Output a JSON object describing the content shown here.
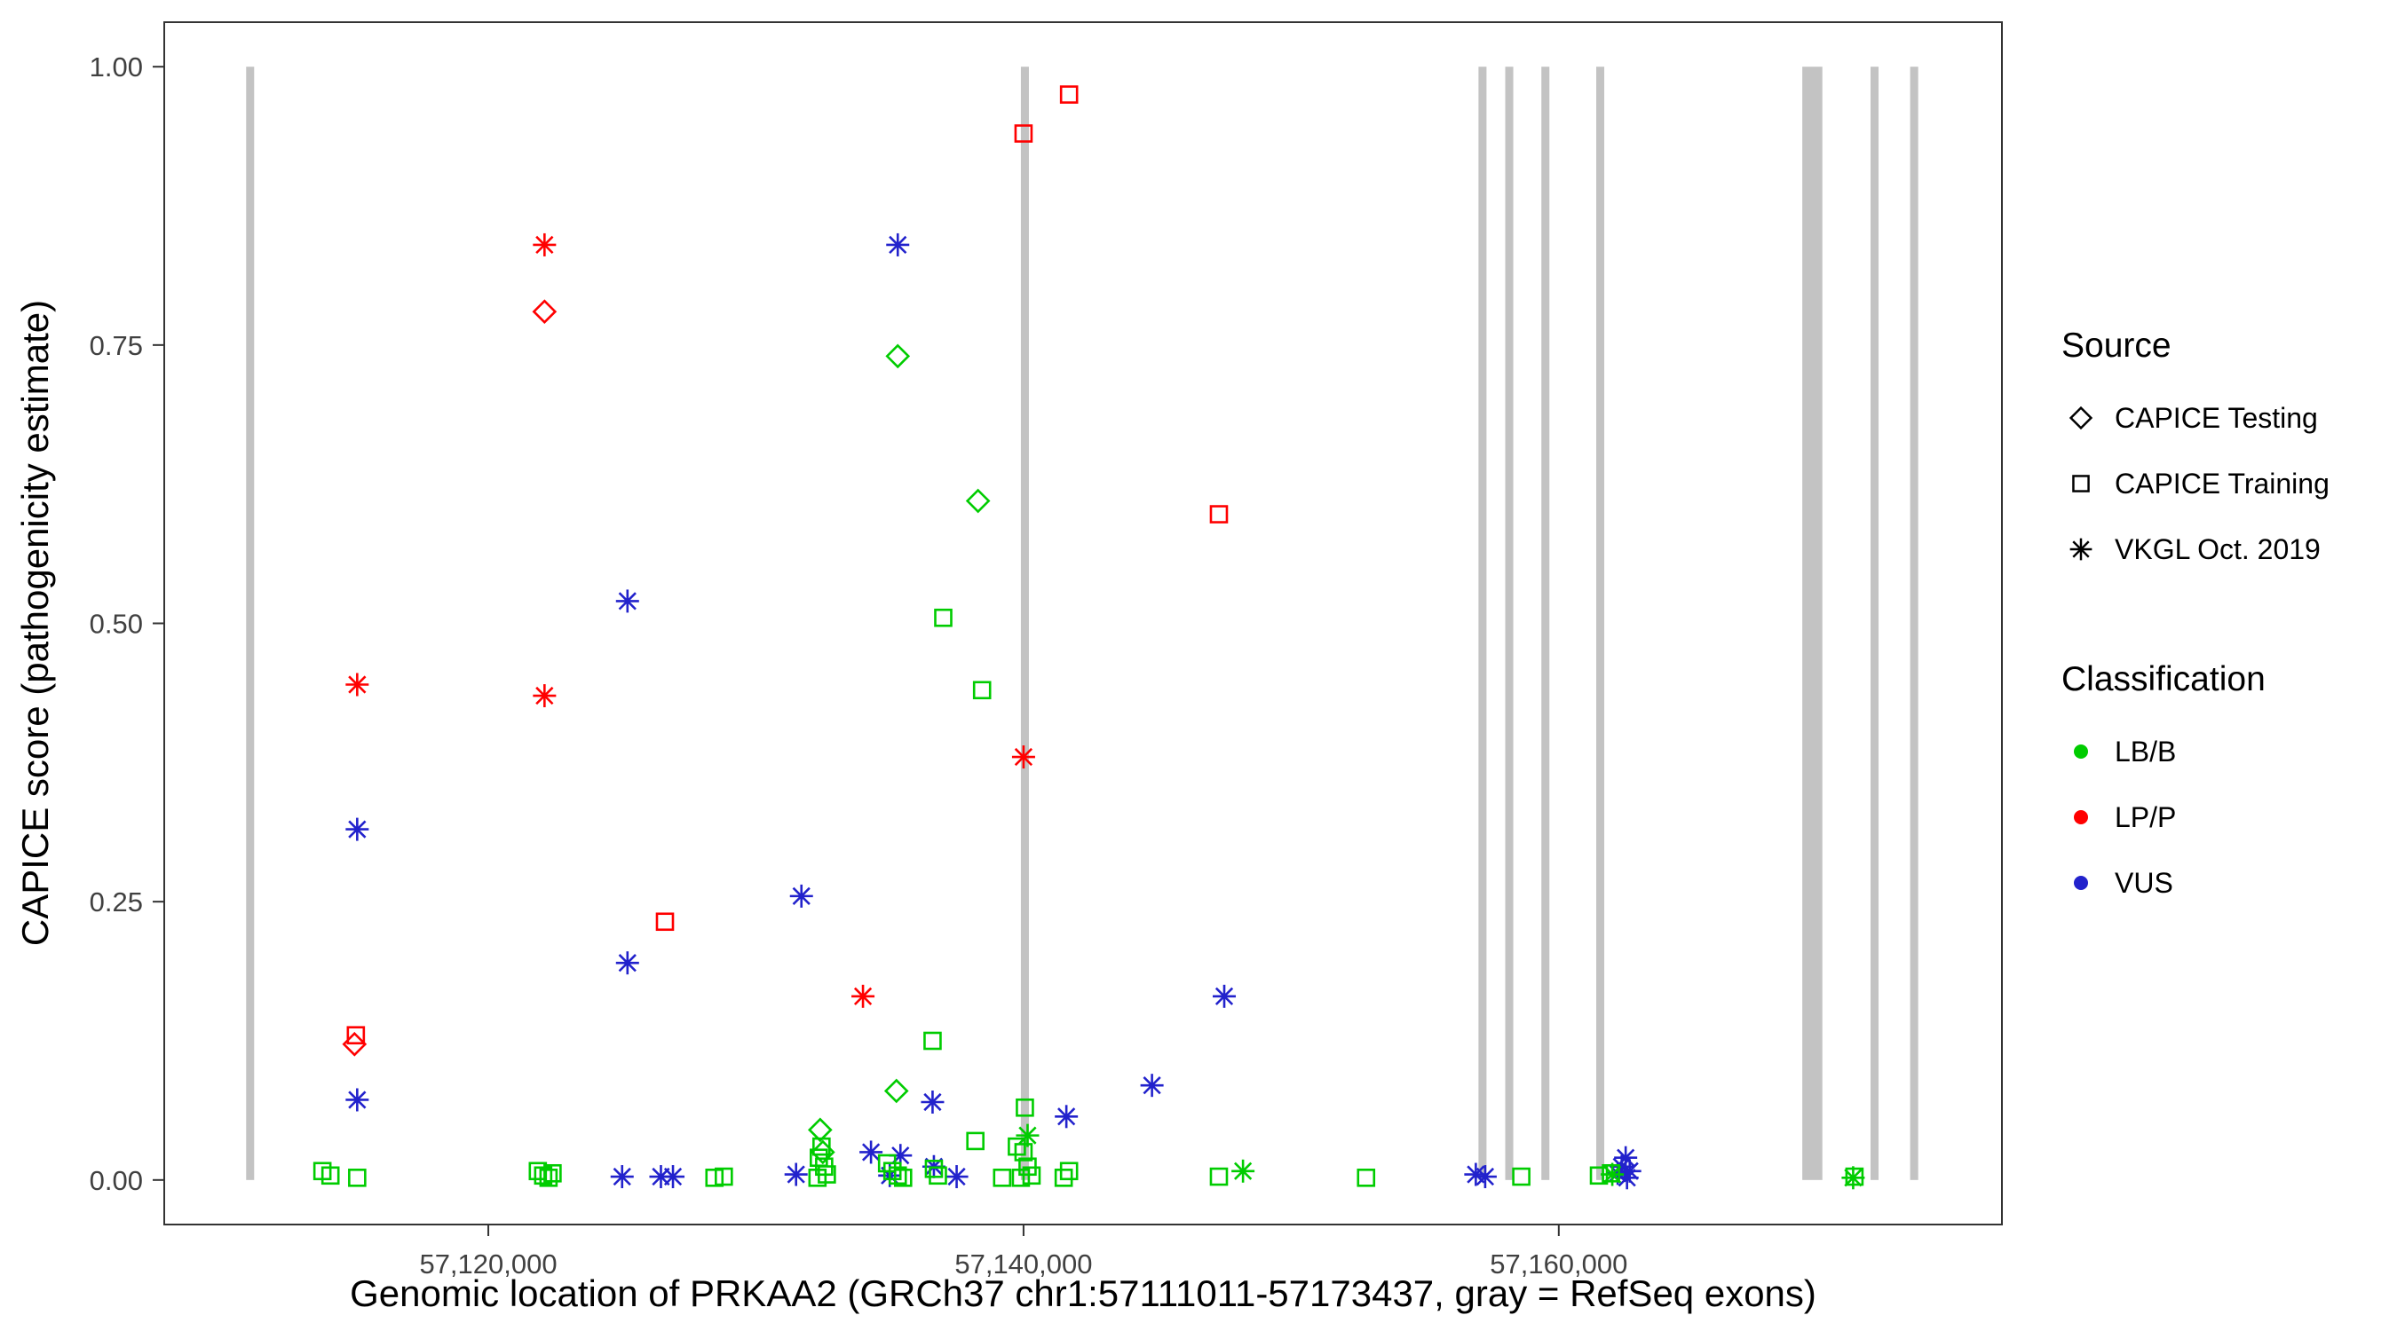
{
  "chart_data": {
    "type": "scatter",
    "title": "",
    "xlabel": "Genomic location of PRKAA2 (GRCh37 chr1:57111011-57173437, gray = RefSeq exons)",
    "ylabel": "CAPICE score (pathogenicity estimate)",
    "x_domain": [
      57107890,
      57176560
    ],
    "y_domain": [
      -0.04,
      1.04
    ],
    "x_ticks": [
      {
        "value": 57120000,
        "label": "57,120,000"
      },
      {
        "value": 57140000,
        "label": "57,140,000"
      },
      {
        "value": 57160000,
        "label": "57,160,000"
      }
    ],
    "y_ticks": [
      {
        "value": 0.0,
        "label": "0.00"
      },
      {
        "value": 0.25,
        "label": "0.25"
      },
      {
        "value": 0.5,
        "label": "0.50"
      },
      {
        "value": 0.75,
        "label": "0.75"
      },
      {
        "value": 1.0,
        "label": "1.00"
      }
    ],
    "grid": false,
    "legend_position": "right",
    "exon_color": "#C3C3C3",
    "exons": [
      [
        57110950,
        57111250
      ],
      [
        57139900,
        57140200
      ],
      [
        57157000,
        57157300
      ],
      [
        57158000,
        57158300
      ],
      [
        57159350,
        57159650
      ],
      [
        57161400,
        57161700
      ],
      [
        57169100,
        57169850
      ],
      [
        57171650,
        57171950
      ],
      [
        57173130,
        57173430
      ]
    ],
    "color_by_class": {
      "LB/B": "#00CC00",
      "LP/P": "#FF0000",
      "VUS": "#2222CC"
    },
    "shape_by_source": {
      "CAPICE Testing": "diamond",
      "CAPICE Training": "square",
      "VKGL Oct. 2019": "asterisk"
    },
    "point_fields": [
      "genomic_position",
      "capice_score",
      "classification",
      "source"
    ],
    "points": [
      [
        57115100,
        0.445,
        "LP/P",
        "VKGL Oct. 2019"
      ],
      [
        57115050,
        0.13,
        "LP/P",
        "CAPICE Training"
      ],
      [
        57115000,
        0.122,
        "LP/P",
        "CAPICE Testing"
      ],
      [
        57122100,
        0.84,
        "LP/P",
        "VKGL Oct. 2019"
      ],
      [
        57122100,
        0.78,
        "LP/P",
        "CAPICE Testing"
      ],
      [
        57122100,
        0.435,
        "LP/P",
        "VKGL Oct. 2019"
      ],
      [
        57126600,
        0.232,
        "LP/P",
        "CAPICE Training"
      ],
      [
        57134000,
        0.165,
        "LP/P",
        "VKGL Oct. 2019"
      ],
      [
        57140000,
        0.94,
        "LP/P",
        "CAPICE Training"
      ],
      [
        57141700,
        0.975,
        "LP/P",
        "CAPICE Training"
      ],
      [
        57140000,
        0.38,
        "LP/P",
        "VKGL Oct. 2019"
      ],
      [
        57147300,
        0.598,
        "LP/P",
        "CAPICE Training"
      ],
      [
        57135300,
        0.84,
        "VUS",
        "VKGL Oct. 2019"
      ],
      [
        57125200,
        0.52,
        "VUS",
        "VKGL Oct. 2019"
      ],
      [
        57115100,
        0.315,
        "VUS",
        "VKGL Oct. 2019"
      ],
      [
        57131700,
        0.255,
        "VUS",
        "VKGL Oct. 2019"
      ],
      [
        57125200,
        0.195,
        "VUS",
        "VKGL Oct. 2019"
      ],
      [
        57147500,
        0.165,
        "VUS",
        "VKGL Oct. 2019"
      ],
      [
        57144800,
        0.085,
        "VUS",
        "VKGL Oct. 2019"
      ],
      [
        57115100,
        0.072,
        "VUS",
        "VKGL Oct. 2019"
      ],
      [
        57136600,
        0.07,
        "VUS",
        "VKGL Oct. 2019"
      ],
      [
        57141600,
        0.057,
        "VUS",
        "VKGL Oct. 2019"
      ],
      [
        57125000,
        0.003,
        "VUS",
        "VKGL Oct. 2019"
      ],
      [
        57126450,
        0.003,
        "VUS",
        "VKGL Oct. 2019"
      ],
      [
        57126900,
        0.003,
        "VUS",
        "VKGL Oct. 2019"
      ],
      [
        57131500,
        0.005,
        "VUS",
        "VKGL Oct. 2019"
      ],
      [
        57134300,
        0.025,
        "VUS",
        "VKGL Oct. 2019"
      ],
      [
        57135000,
        0.004,
        "VUS",
        "VKGL Oct. 2019"
      ],
      [
        57135400,
        0.022,
        "VUS",
        "VKGL Oct. 2019"
      ],
      [
        57136650,
        0.012,
        "VUS",
        "VKGL Oct. 2019"
      ],
      [
        57137500,
        0.003,
        "VUS",
        "VKGL Oct. 2019"
      ],
      [
        57156900,
        0.005,
        "VUS",
        "VKGL Oct. 2019"
      ],
      [
        57157250,
        0.003,
        "VUS",
        "VKGL Oct. 2019"
      ],
      [
        57162200,
        0.006,
        "VUS",
        "VKGL Oct. 2019"
      ],
      [
        57162350,
        0.012,
        "VUS",
        "VKGL Oct. 2019"
      ],
      [
        57162500,
        0.02,
        "VUS",
        "VKGL Oct. 2019"
      ],
      [
        57162650,
        0.008,
        "VUS",
        "VKGL Oct. 2019"
      ],
      [
        57162550,
        0.002,
        "VUS",
        "VKGL Oct. 2019"
      ],
      [
        57135300,
        0.74,
        "LB/B",
        "CAPICE Testing"
      ],
      [
        57138300,
        0.61,
        "LB/B",
        "CAPICE Testing"
      ],
      [
        57137000,
        0.505,
        "LB/B",
        "CAPICE Training"
      ],
      [
        57138450,
        0.44,
        "LB/B",
        "CAPICE Training"
      ],
      [
        57136600,
        0.125,
        "LB/B",
        "CAPICE Training"
      ],
      [
        57135250,
        0.08,
        "LB/B",
        "CAPICE Testing"
      ],
      [
        57132400,
        0.045,
        "LB/B",
        "CAPICE Testing"
      ],
      [
        57132500,
        0.025,
        "LB/B",
        "CAPICE Testing"
      ],
      [
        57140050,
        0.065,
        "LB/B",
        "CAPICE Training"
      ],
      [
        57140150,
        0.04,
        "LB/B",
        "VKGL Oct. 2019"
      ],
      [
        57138200,
        0.035,
        "LB/B",
        "CAPICE Training"
      ],
      [
        57132450,
        0.03,
        "LB/B",
        "CAPICE Training"
      ],
      [
        57132350,
        0.02,
        "LB/B",
        "CAPICE Training"
      ],
      [
        57132550,
        0.012,
        "LB/B",
        "CAPICE Training"
      ],
      [
        57132650,
        0.005,
        "LB/B",
        "CAPICE Training"
      ],
      [
        57132300,
        0.002,
        "LB/B",
        "CAPICE Training"
      ],
      [
        57134900,
        0.015,
        "LB/B",
        "CAPICE Training"
      ],
      [
        57135100,
        0.008,
        "LB/B",
        "CAPICE Training"
      ],
      [
        57135300,
        0.004,
        "LB/B",
        "CAPICE Training"
      ],
      [
        57135500,
        0.002,
        "LB/B",
        "CAPICE Training"
      ],
      [
        57113800,
        0.008,
        "LB/B",
        "CAPICE Training"
      ],
      [
        57114100,
        0.004,
        "LB/B",
        "CAPICE Training"
      ],
      [
        57115100,
        0.002,
        "LB/B",
        "CAPICE Training"
      ],
      [
        57121850,
        0.008,
        "LB/B",
        "CAPICE Training"
      ],
      [
        57122050,
        0.004,
        "LB/B",
        "CAPICE Training"
      ],
      [
        57122250,
        0.002,
        "LB/B",
        "CAPICE Training"
      ],
      [
        57122400,
        0.006,
        "LB/B",
        "CAPICE Training"
      ],
      [
        57128450,
        0.002,
        "LB/B",
        "CAPICE Training"
      ],
      [
        57128800,
        0.003,
        "LB/B",
        "CAPICE Training"
      ],
      [
        57136650,
        0.01,
        "LB/B",
        "CAPICE Training"
      ],
      [
        57136800,
        0.004,
        "LB/B",
        "CAPICE Training"
      ],
      [
        57139200,
        0.002,
        "LB/B",
        "CAPICE Training"
      ],
      [
        57139750,
        0.03,
        "LB/B",
        "CAPICE Training"
      ],
      [
        57140000,
        0.025,
        "LB/B",
        "CAPICE Training"
      ],
      [
        57140150,
        0.012,
        "LB/B",
        "CAPICE Training"
      ],
      [
        57140300,
        0.004,
        "LB/B",
        "CAPICE Training"
      ],
      [
        57139900,
        0.002,
        "LB/B",
        "CAPICE Training"
      ],
      [
        57141500,
        0.002,
        "LB/B",
        "CAPICE Training"
      ],
      [
        57141700,
        0.008,
        "LB/B",
        "CAPICE Training"
      ],
      [
        57147300,
        0.003,
        "LB/B",
        "CAPICE Training"
      ],
      [
        57148200,
        0.008,
        "LB/B",
        "VKGL Oct. 2019"
      ],
      [
        57152800,
        0.002,
        "LB/B",
        "CAPICE Training"
      ],
      [
        57158600,
        0.003,
        "LB/B",
        "CAPICE Training"
      ],
      [
        57161500,
        0.004,
        "LB/B",
        "CAPICE Training"
      ],
      [
        57161950,
        0.006,
        "LB/B",
        "CAPICE Training"
      ],
      [
        57162000,
        0.005,
        "LB/B",
        "VKGL Oct. 2019"
      ],
      [
        57171000,
        0.002,
        "LB/B",
        "VKGL Oct. 2019"
      ],
      [
        57171050,
        0.003,
        "LB/B",
        "CAPICE Training"
      ]
    ]
  },
  "legend": {
    "source": {
      "title": "Source",
      "items": [
        {
          "label": "CAPICE Testing",
          "marker": "diamond"
        },
        {
          "label": "CAPICE Training",
          "marker": "square"
        },
        {
          "label": "VKGL Oct. 2019",
          "marker": "asterisk"
        }
      ]
    },
    "classification": {
      "title": "Classification",
      "items": [
        {
          "label": "LB/B",
          "color": "#00CC00"
        },
        {
          "label": "LP/P",
          "color": "#FF0000"
        },
        {
          "label": "VUS",
          "color": "#2222CC"
        }
      ]
    }
  }
}
